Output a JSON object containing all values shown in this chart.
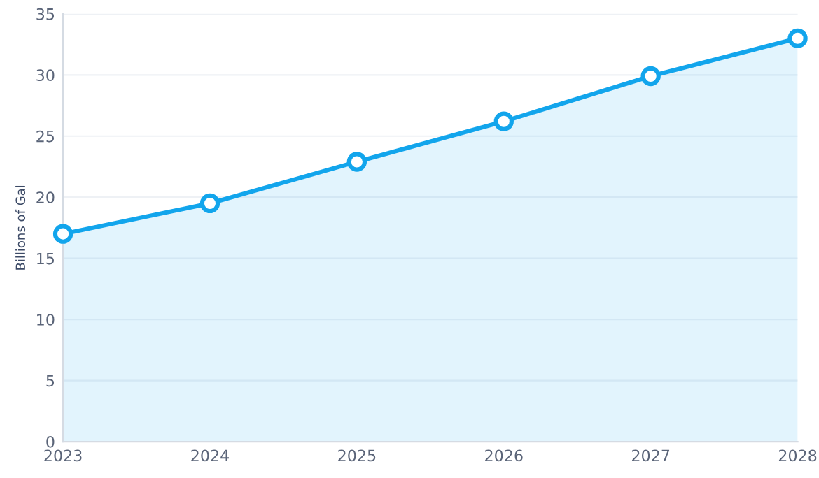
{
  "chart_data": {
    "type": "area",
    "ylabel": "Billions of Gal",
    "x": [
      2023,
      2024,
      2025,
      2026,
      2027,
      2028
    ],
    "series": [
      {
        "color": "#12a5ec",
        "values": [
          17.0,
          19.5,
          22.9,
          26.2,
          29.9,
          33.0
        ]
      }
    ],
    "xlim": [
      2023,
      2028
    ],
    "xticks": [
      2023,
      2024,
      2025,
      2026,
      2027,
      2028
    ],
    "ylim": [
      0,
      35
    ],
    "yticks": [
      0,
      5,
      10,
      15,
      20,
      25,
      30,
      35
    ],
    "grid": "y",
    "marker": "circle",
    "line_style": "solid"
  }
}
